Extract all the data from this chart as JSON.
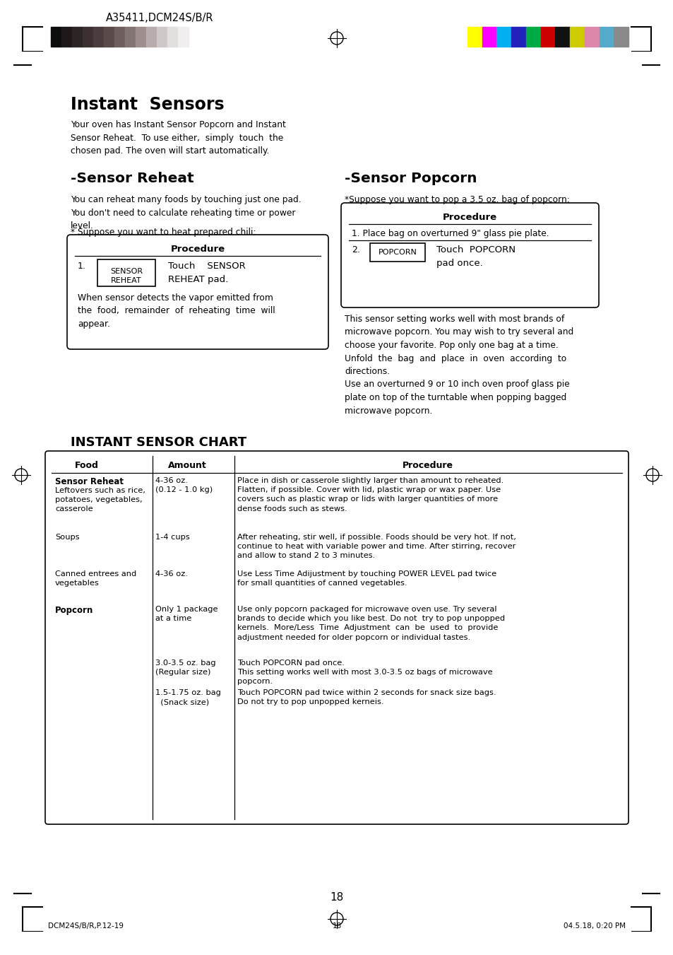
{
  "page_title": "A35411,DCM24S/B/R",
  "bg_color": "#ffffff",
  "text_color": "#000000",
  "header_colors_dark": [
    "#0d0d0d",
    "#1e1818",
    "#2d2424",
    "#3c3030",
    "#4b3d3d",
    "#5a4a4a",
    "#6e5e5e",
    "#837474",
    "#9e8e8e",
    "#b8acac",
    "#cfc8c8",
    "#e3dfdf",
    "#f0eeee"
  ],
  "header_colors_bright": [
    "#ffff00",
    "#ff00ff",
    "#00b0f0",
    "#2222bb",
    "#00aa44",
    "#cc0000",
    "#111111",
    "#cccc00",
    "#dd88aa",
    "#55aacc",
    "#8a8a8a"
  ],
  "instant_sensors_title": "Instant  Sensors",
  "instant_sensors_text": "Your oven has Instant Sensor Popcorn and Instant\nSensor Reheat.  To use either,  simply  touch  the\nchosen pad. The oven will start automatically.",
  "sensor_reheat_title": "-Sensor Reheat",
  "sensor_reheat_text1": "You can reheat many foods by touching just one pad.\nYou don't need to calculate reheating time or power\nlevel.",
  "sensor_reheat_text2": "* Suppose you want to heat prepared chili:",
  "procedure_label": "Procedure",
  "step1_label": "1.",
  "button_reheat_line1": "SENSOR",
  "button_reheat_line2": "REHEAT",
  "touch_reheat_text": "Touch    SENSOR\nREHEAT pad.",
  "sensor_reheat_note": "When sensor detects the vapor emitted from\nthe  food,  remainder  of  reheating  time  will\nappear.",
  "sensor_popcorn_title": "-Sensor Popcorn",
  "sensor_popcorn_intro": "*Suppose you want to pop a 3.5 oz. bag of popcorn:",
  "popcorn_step1": "1. Place bag on overturned 9\" glass pie plate.",
  "popcorn_step2_label": "2.",
  "button_popcorn": "POPCORN",
  "touch_popcorn_text": "Touch  POPCORN\npad once.",
  "sensor_popcorn_note": "This sensor setting works well with most brands of\nmicrowave popcorn. You may wish to try several and\nchoose your favorite. Pop only one bag at a time.\nUnfold  the  bag  and  place  in  oven  according  to\ndirections.\nUse an overturned 9 or 10 inch oven proof glass pie\nplate on top of the turntable when popping bagged\nmicrowave popcorn.",
  "chart_title": "INSTANT SENSOR CHART",
  "chart_col1": "Food",
  "chart_col2": "Amount",
  "chart_col3": "Procedure",
  "row1_food_bold": "Sensor Reheat",
  "row1_food_rest": "Leftovers such as rice,\npotatoes, vegetables,\ncasserole",
  "row1_amount": "4-36 oz.\n(0.12 - 1.0 kg)",
  "row1_proc": "Place in dish or casserole slightly larger than amount to reheated.\nFlatten, if possible. Cover with lid, plastic wrap or wax paper. Use\ncovers such as plastic wrap or lids with larger quantities of more\ndense foods such as stews.",
  "row2_food": "Soups",
  "row2_amount": "1-4 cups",
  "row2_proc": "After reheating, stir well, if possible. Foods should be very hot. If not,\ncontinue to heat with variable power and time. After stirring, recover\nand allow to stand 2 to 3 minutes.",
  "row3_food": "Canned entrees and\nvegetables",
  "row3_amount": "4-36 oz.",
  "row3_proc": "Use Less Time Adijustment by touching POWER LEVEL pad twice\nfor small quantities of canned vegetables.",
  "row4_food_bold": "Popcorn",
  "row4_amount": "Only 1 package\nat a time",
  "row4_proc": "Use only popcorn packaged for microwave oven use. Try several\nbrands to decide which you like best. Do not  try to pop unpopped\nkernels.  More/Less  Time  Adjustment  can  be  used  to  provide\nadjustment needed for older popcorn or individual tastes.",
  "row5_amount": "3.0-3.5 oz. bag\n(Regular size)",
  "row5_proc": "Touch POPCORN pad once.\nThis setting works well with most 3.0-3.5 oz bags of microwave\npopcorn.",
  "row6_amount": "1.5-1.75 oz. bag\n  (Snack size)",
  "row6_proc": "Touch POPCORN pad twice within 2 seconds for snack size bags.\nDo not try to pop unpopped kerneis.",
  "footer_left": "DCM24S/B/R,P.12-19",
  "footer_center_page": "18",
  "footer_right": "04.5.18, 0:20 PM",
  "page_number": "18"
}
